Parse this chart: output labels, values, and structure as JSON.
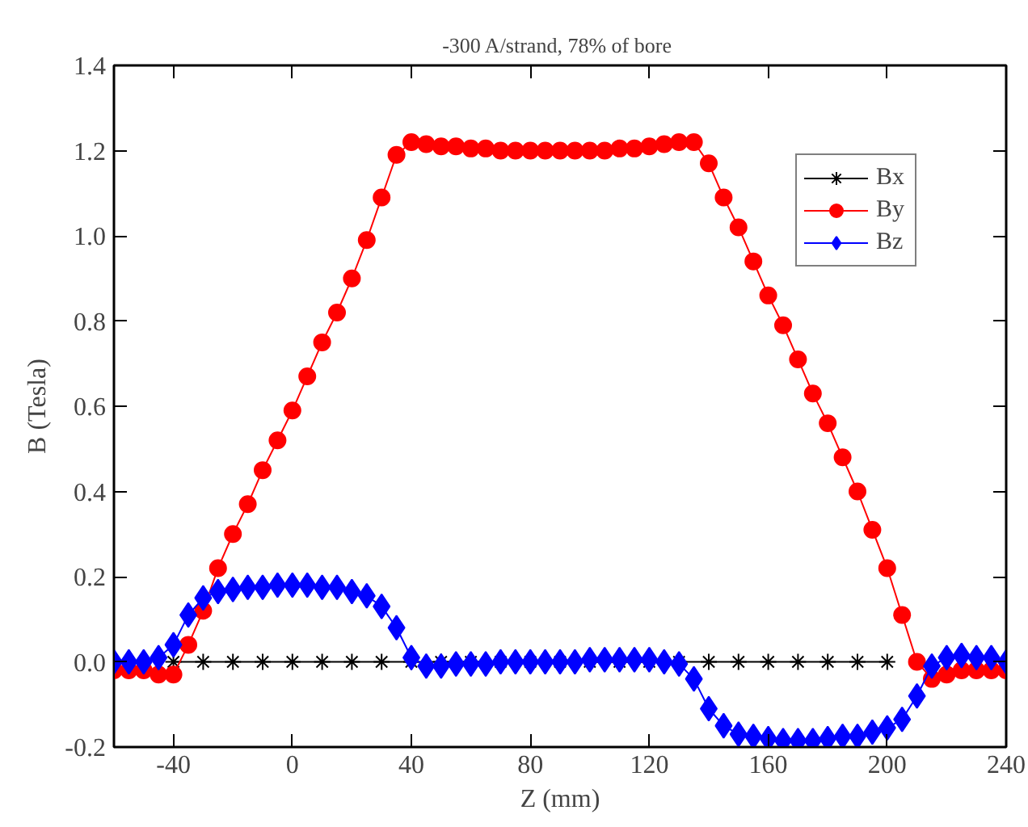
{
  "chart_data": {
    "type": "line",
    "title": "-300 A/strand, 78% of  bore",
    "xlabel": "Z (mm)",
    "ylabel": "B (Tesla)",
    "xlim": [
      -60,
      240
    ],
    "ylim": [
      -0.2,
      1.4
    ],
    "xticks": [
      -40,
      0,
      40,
      80,
      120,
      160,
      200,
      240
    ],
    "yticks": [
      -0.2,
      {
        "value": 0,
        "label": "0.0"
      },
      0.2,
      0.4,
      0.6,
      0.8,
      {
        "value": 1,
        "label": "1.0"
      },
      1.2,
      1.4
    ],
    "grid": false,
    "legend": "top right",
    "line_style": "solid",
    "series": [
      {
        "name": "Bx",
        "color": "#000000",
        "marker": "cross",
        "x": [
          -40,
          -30,
          -20,
          -10,
          0,
          10,
          20,
          30,
          40,
          50,
          60,
          70,
          80,
          90,
          100,
          110,
          120,
          130,
          140,
          150,
          160,
          170,
          180,
          190,
          200
        ],
        "values": [
          0,
          0,
          0,
          0,
          0,
          0,
          0,
          0,
          0,
          0,
          0,
          0,
          0,
          0,
          0,
          0,
          0,
          0,
          0,
          0,
          0,
          0,
          0,
          0,
          0
        ]
      },
      {
        "name": "By",
        "color": "#ff0000",
        "marker": "circle",
        "x": [
          -60,
          -55,
          -50,
          -45,
          -40,
          -35,
          -30,
          -25,
          -20,
          -15,
          -10,
          -5,
          0,
          5,
          10,
          15,
          20,
          25,
          30,
          35,
          40,
          45,
          50,
          55,
          60,
          65,
          70,
          75,
          80,
          85,
          90,
          95,
          100,
          105,
          110,
          115,
          120,
          125,
          130,
          135,
          140,
          145,
          150,
          155,
          160,
          165,
          170,
          175,
          180,
          185,
          190,
          195,
          200,
          205,
          210,
          215,
          220,
          225,
          230,
          235,
          240
        ],
        "values": [
          -0.02,
          -0.02,
          -0.02,
          -0.03,
          -0.03,
          0.04,
          0.12,
          0.22,
          0.3,
          0.37,
          0.45,
          0.52,
          0.59,
          0.67,
          0.75,
          0.82,
          0.9,
          0.99,
          1.09,
          1.19,
          1.22,
          1.215,
          1.21,
          1.21,
          1.205,
          1.205,
          1.2,
          1.2,
          1.2,
          1.2,
          1.2,
          1.2,
          1.2,
          1.2,
          1.205,
          1.205,
          1.21,
          1.215,
          1.22,
          1.22,
          1.17,
          1.09,
          1.02,
          0.94,
          0.86,
          0.79,
          0.71,
          0.63,
          0.56,
          0.48,
          0.4,
          0.31,
          0.22,
          0.11,
          0.0,
          -0.04,
          -0.03,
          -0.02,
          -0.02,
          -0.02,
          -0.02
        ]
      },
      {
        "name": "Bz",
        "color": "#0000ff",
        "marker": "diamond",
        "x": [
          -60,
          -55,
          -50,
          -45,
          -40,
          -35,
          -30,
          -25,
          -20,
          -15,
          -10,
          -5,
          0,
          5,
          10,
          15,
          20,
          25,
          30,
          35,
          40,
          45,
          50,
          55,
          60,
          65,
          70,
          75,
          80,
          85,
          90,
          95,
          100,
          105,
          110,
          115,
          120,
          125,
          130,
          135,
          140,
          145,
          150,
          155,
          160,
          165,
          170,
          175,
          180,
          185,
          190,
          195,
          200,
          205,
          210,
          215,
          220,
          225,
          230,
          235,
          240
        ],
        "values": [
          0,
          0,
          0,
          0.01,
          0.04,
          0.11,
          0.15,
          0.165,
          0.17,
          0.175,
          0.175,
          0.18,
          0.18,
          0.18,
          0.175,
          0.175,
          0.165,
          0.155,
          0.13,
          0.08,
          0.01,
          -0.01,
          -0.01,
          -0.005,
          -0.005,
          -0.005,
          0,
          0,
          0,
          0,
          0,
          0,
          0.005,
          0.005,
          0.005,
          0.005,
          0.005,
          0,
          -0.005,
          -0.04,
          -0.11,
          -0.15,
          -0.17,
          -0.175,
          -0.18,
          -0.185,
          -0.185,
          -0.185,
          -0.18,
          -0.175,
          -0.175,
          -0.165,
          -0.155,
          -0.135,
          -0.08,
          -0.01,
          0.01,
          0.015,
          0.01,
          0.01,
          0.0
        ]
      }
    ]
  }
}
